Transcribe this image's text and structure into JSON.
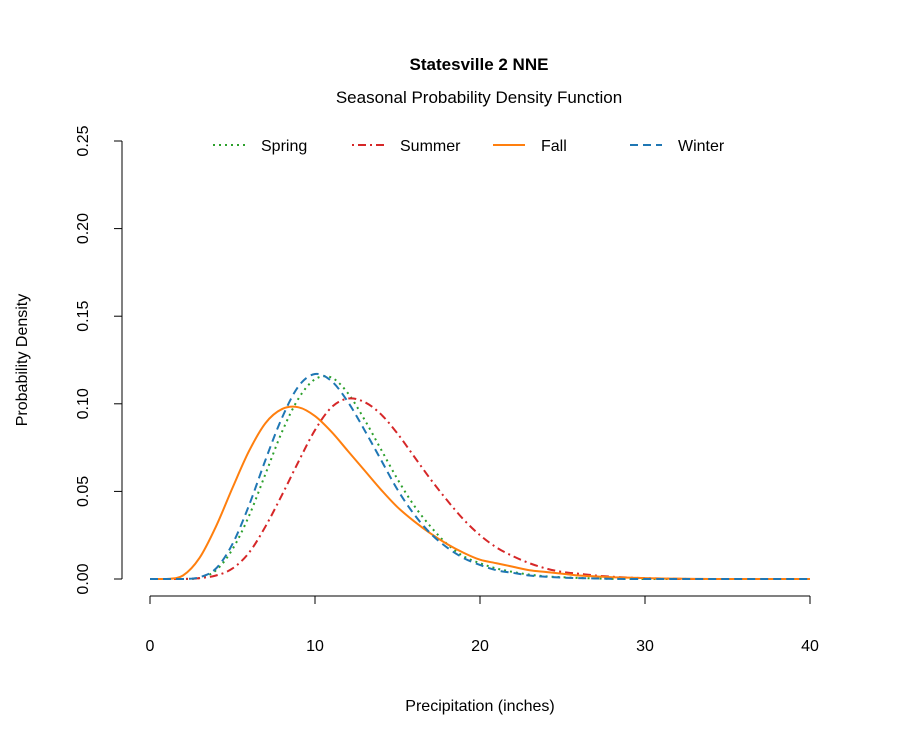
{
  "chart_data": {
    "type": "line",
    "title": "Statesville 2 NNE",
    "subtitle": "Seasonal Probability Density Function",
    "xlabel": "Precipitation (inches)",
    "ylabel": "Probability Density",
    "xlim": [
      0,
      40
    ],
    "ylim": [
      0,
      0.25
    ],
    "x_ticks": [
      "0",
      "10",
      "20",
      "30",
      "40"
    ],
    "y_ticks": [
      "0.00",
      "0.05",
      "0.10",
      "0.15",
      "0.20",
      "0.25"
    ],
    "grid": false,
    "legend_position": "top",
    "x": [
      0,
      1,
      2,
      3,
      4,
      5,
      6,
      7,
      8,
      9,
      10,
      11,
      12,
      13,
      14,
      15,
      16,
      17,
      18,
      19,
      20,
      21,
      22,
      23,
      24,
      25,
      26,
      27,
      28,
      29,
      30,
      31,
      32,
      33,
      34,
      35,
      36,
      37,
      38,
      39,
      40
    ],
    "series": [
      {
        "name": "Spring",
        "color": "#2ca02c",
        "style": "dotted",
        "values": [
          0,
          0,
          0,
          0.0005,
          0.005,
          0.017,
          0.036,
          0.06,
          0.084,
          0.103,
          0.114,
          0.115,
          0.106,
          0.091,
          0.074,
          0.057,
          0.042,
          0.03,
          0.02,
          0.013,
          0.009,
          0.006,
          0.004,
          0.0025,
          0.0015,
          0.001,
          0.0006,
          0.0003,
          0.0001,
          0,
          0,
          0,
          0,
          0,
          0,
          0,
          0,
          0,
          0,
          0,
          0
        ]
      },
      {
        "name": "Summer",
        "color": "#d62728",
        "style": "dotdash",
        "values": [
          0,
          0,
          0,
          0.0005,
          0.002,
          0.006,
          0.015,
          0.03,
          0.048,
          0.067,
          0.085,
          0.098,
          0.103,
          0.101,
          0.094,
          0.083,
          0.07,
          0.057,
          0.045,
          0.034,
          0.025,
          0.018,
          0.013,
          0.009,
          0.006,
          0.004,
          0.003,
          0.002,
          0.0013,
          0.0008,
          0.0005,
          0.0003,
          0.0001,
          0,
          0,
          0,
          0,
          0,
          0,
          0,
          0
        ]
      },
      {
        "name": "Fall",
        "color": "#ff7f0e",
        "style": "solid",
        "values": [
          0,
          0,
          0.002,
          0.012,
          0.03,
          0.052,
          0.073,
          0.089,
          0.097,
          0.098,
          0.093,
          0.084,
          0.073,
          0.062,
          0.051,
          0.041,
          0.033,
          0.026,
          0.02,
          0.015,
          0.011,
          0.009,
          0.007,
          0.005,
          0.004,
          0.003,
          0.002,
          0.0015,
          0.001,
          0.0008,
          0.0005,
          0.0003,
          0.0002,
          0.0001,
          0,
          0,
          0,
          0,
          0,
          0,
          0
        ]
      },
      {
        "name": "Winter",
        "color": "#1f77b4",
        "style": "dashed",
        "values": [
          0,
          0,
          0,
          0.001,
          0.006,
          0.02,
          0.042,
          0.068,
          0.092,
          0.11,
          0.117,
          0.113,
          0.101,
          0.085,
          0.068,
          0.051,
          0.037,
          0.026,
          0.018,
          0.012,
          0.008,
          0.005,
          0.0035,
          0.002,
          0.0013,
          0.0008,
          0.0005,
          0.0003,
          0.0001,
          0,
          0,
          0,
          0,
          0,
          0,
          0,
          0,
          0,
          0,
          0,
          0
        ]
      }
    ]
  }
}
